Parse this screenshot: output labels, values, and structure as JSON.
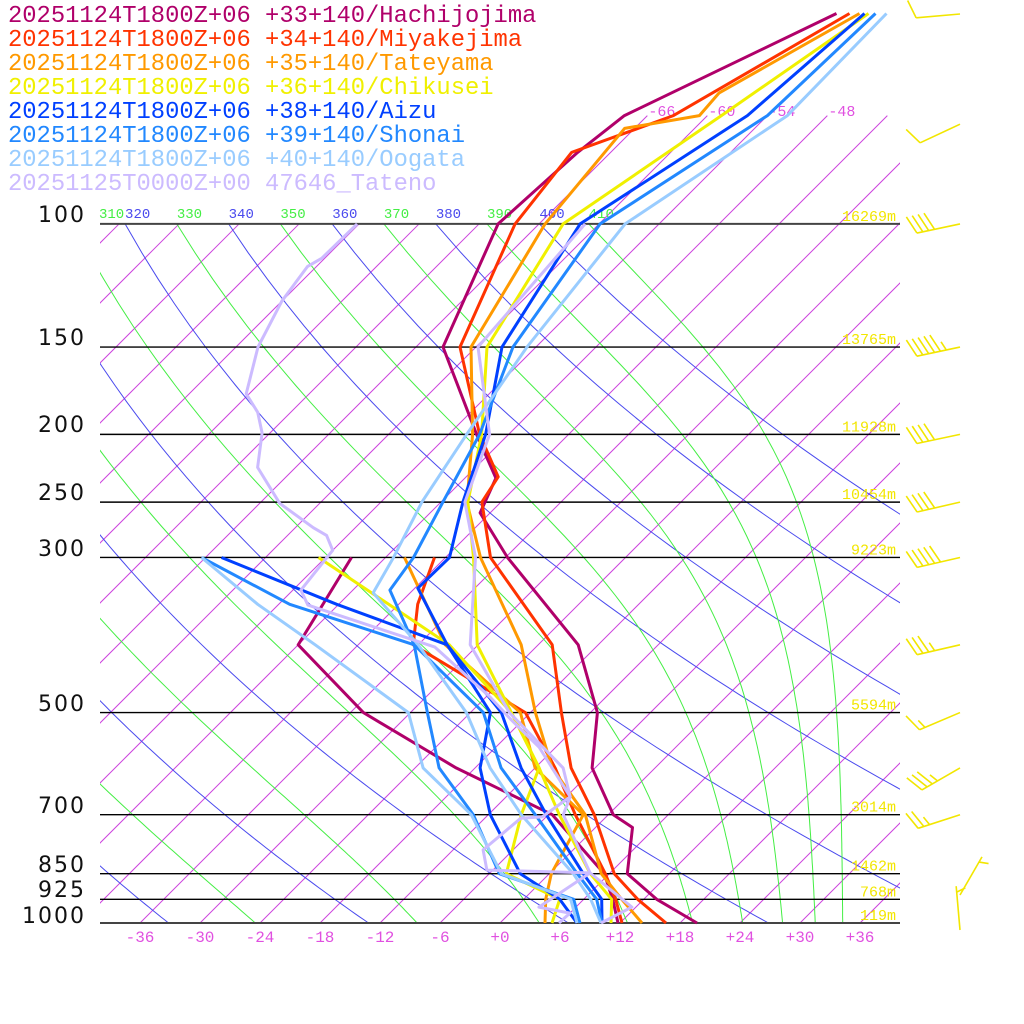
{
  "chart_data": {
    "type": "line",
    "chart_kind": "skew-T log-p",
    "xlabel": "",
    "ylabel": "",
    "xlim_at_1000hPa": [
      -40,
      40
    ],
    "ylim_hPa": [
      1000,
      48
    ],
    "colors": {
      "isotherm": "#cc44dd",
      "dry_adiabat": "#4a4aee",
      "moist_adiabat": "#44ee44",
      "isobar": "#000000",
      "height_label": "#f2e600",
      "temperature_label": "#e050e0",
      "wind_barb": "#f2e600"
    },
    "isobars": [
      {
        "p": 100,
        "label": "100",
        "height": "16269m"
      },
      {
        "p": 150,
        "label": "150",
        "height": "13765m"
      },
      {
        "p": 200,
        "label": "200",
        "height": "11928m"
      },
      {
        "p": 250,
        "label": "250",
        "height": "10454m"
      },
      {
        "p": 300,
        "label": "300",
        "height": "9223m"
      },
      {
        "p": 500,
        "label": "500",
        "height": "5594m"
      },
      {
        "p": 700,
        "label": "700",
        "height": "3014m"
      },
      {
        "p": 850,
        "label": "850",
        "height": "1462m"
      },
      {
        "p": 925,
        "label": "925",
        "height": "768m"
      },
      {
        "p": 1000,
        "label": "1000",
        "height": "119m"
      }
    ],
    "temperature_ticks": [
      {
        "value": -36,
        "label": "-36"
      },
      {
        "value": -30,
        "label": "-30"
      },
      {
        "value": -24,
        "label": "-24"
      },
      {
        "value": -18,
        "label": "-18"
      },
      {
        "value": -12,
        "label": "-12"
      },
      {
        "value": -6,
        "label": "-6"
      },
      {
        "value": 0,
        "label": "+0"
      },
      {
        "value": 6,
        "label": "+6"
      },
      {
        "value": 12,
        "label": "+12"
      },
      {
        "value": 18,
        "label": "+18"
      },
      {
        "value": 24,
        "label": "+24"
      },
      {
        "value": 30,
        "label": "+30"
      },
      {
        "value": 36,
        "label": "+36"
      }
    ],
    "isotherm_top_labels": [
      {
        "value": -66,
        "label": "-66"
      },
      {
        "value": -60,
        "label": "-60"
      },
      {
        "value": -54,
        "label": "-54"
      },
      {
        "value": -48,
        "label": "-48"
      }
    ],
    "theta_labels": [
      {
        "value": 310,
        "label": "310",
        "kind": "theta_e"
      },
      {
        "value": 320,
        "label": "320",
        "kind": "theta"
      },
      {
        "value": 330,
        "label": "330",
        "kind": "theta_e"
      },
      {
        "value": 340,
        "label": "340",
        "kind": "theta"
      },
      {
        "value": 350,
        "label": "350",
        "kind": "theta_e"
      },
      {
        "value": 360,
        "label": "360",
        "kind": "theta"
      },
      {
        "value": 370,
        "label": "370",
        "kind": "theta_e"
      },
      {
        "value": 380,
        "label": "380",
        "kind": "theta"
      },
      {
        "value": 390,
        "label": "390",
        "kind": "theta_e"
      },
      {
        "value": 400,
        "label": "400",
        "kind": "theta"
      },
      {
        "value": 410,
        "label": "410",
        "kind": "theta_e"
      }
    ],
    "series": [
      {
        "label": "20251124T1800Z+06 +33+140/Hachijojima",
        "color": "#b0006a",
        "temperature": [
          [
            1000,
            19.7
          ],
          [
            925,
            13.3
          ],
          [
            850,
            7.8
          ],
          [
            730,
            3.7
          ],
          [
            700,
            0.5
          ],
          [
            600,
            -6.3
          ],
          [
            500,
            -11.3
          ],
          [
            400,
            -20.0
          ],
          [
            300,
            -35.8
          ],
          [
            259,
            -43.0
          ],
          [
            231,
            -44.9
          ],
          [
            200,
            -51.2
          ],
          [
            150,
            -63.3
          ],
          [
            100,
            -70.1
          ],
          [
            79,
            -69.3
          ],
          [
            70,
            -68.3
          ],
          [
            50,
            -57.3
          ]
        ],
        "dewpoint": [
          [
            1000,
            11.8
          ],
          [
            925,
            8.9
          ],
          [
            850,
            5.5
          ],
          [
            700,
            -5.6
          ],
          [
            600,
            -19.9
          ],
          [
            500,
            -34.7
          ],
          [
            400,
            -48.0
          ],
          [
            300,
            -51.4
          ]
        ]
      },
      {
        "label": "20251124T1800Z+06 +34+140/Miyakejima",
        "color": "#ff3300",
        "temperature": [
          [
            1000,
            16.6
          ],
          [
            925,
            11.4
          ],
          [
            850,
            6.5
          ],
          [
            700,
            -1.4
          ],
          [
            600,
            -8.4
          ],
          [
            500,
            -14.9
          ],
          [
            400,
            -22.6
          ],
          [
            300,
            -37.5
          ],
          [
            250,
            -43.9
          ],
          [
            230,
            -44.8
          ],
          [
            200,
            -50.9
          ],
          [
            150,
            -61.6
          ],
          [
            100,
            -68.4
          ],
          [
            79,
            -69.9
          ],
          [
            70,
            -63.4
          ],
          [
            50,
            -56.0
          ]
        ],
        "dewpoint": [
          [
            1000,
            12.2
          ],
          [
            925,
            9.2
          ],
          [
            850,
            5.6
          ],
          [
            700,
            -3.3
          ],
          [
            600,
            -10.0
          ],
          [
            500,
            -18.5
          ],
          [
            400,
            -36.5
          ],
          [
            350,
            -40.1
          ],
          [
            300,
            -43.1
          ]
        ]
      },
      {
        "label": "20251124T1800Z+06 +35+140/Tateyama",
        "color": "#ff9900",
        "temperature": [
          [
            1000,
            14.2
          ],
          [
            925,
            9.8
          ],
          [
            850,
            5.2
          ],
          [
            700,
            -2.3
          ],
          [
            600,
            -10.3
          ],
          [
            500,
            -17.5
          ],
          [
            400,
            -25.7
          ],
          [
            300,
            -38.5
          ],
          [
            250,
            -45.4
          ],
          [
            200,
            -51.6
          ],
          [
            150,
            -60.5
          ],
          [
            100,
            -65.4
          ],
          [
            73,
            -67.0
          ],
          [
            70,
            -60.8
          ],
          [
            65,
            -61.1
          ],
          [
            50,
            -55.0
          ]
        ],
        "dewpoint": [
          [
            1000,
            4.5
          ],
          [
            925,
            2.2
          ],
          [
            850,
            0.2
          ],
          [
            700,
            -2.5
          ],
          [
            600,
            -12.0
          ],
          [
            500,
            -19.0
          ],
          [
            400,
            -33.3
          ],
          [
            300,
            -46.1
          ]
        ]
      },
      {
        "label": "20251124T1800Z+06 +36+140/Chikusei",
        "color": "#f0f000",
        "temperature": [
          [
            1000,
            11.1
          ],
          [
            925,
            8.8
          ],
          [
            850,
            4.1
          ],
          [
            700,
            -4.9
          ],
          [
            600,
            -11.6
          ],
          [
            500,
            -19.9
          ],
          [
            400,
            -30.1
          ],
          [
            300,
            -39.2
          ],
          [
            250,
            -45.3
          ],
          [
            200,
            -50.7
          ],
          [
            150,
            -58.9
          ],
          [
            100,
            -63.6
          ],
          [
            70,
            -58.6
          ],
          [
            50,
            -54.1
          ]
        ],
        "dewpoint": [
          [
            1000,
            5.2
          ],
          [
            925,
            3.6
          ],
          [
            850,
            -4.3
          ],
          [
            700,
            -8.7
          ],
          [
            600,
            -11.6
          ],
          [
            500,
            -19.9
          ],
          [
            400,
            -32.9
          ],
          [
            350,
            -43.0
          ],
          [
            300,
            -54.7
          ]
        ]
      },
      {
        "label": "20251124T1800Z+06 +38+140/Aizu",
        "color": "#0040ff",
        "temperature": [
          [
            1000,
            10.2
          ],
          [
            925,
            7.8
          ],
          [
            850,
            3.4
          ],
          [
            700,
            -6.2
          ],
          [
            600,
            -13.4
          ],
          [
            500,
            -20.9
          ],
          [
            400,
            -33.1
          ],
          [
            332,
            -41.7
          ],
          [
            300,
            -41.6
          ],
          [
            250,
            -45.8
          ],
          [
            200,
            -50.3
          ],
          [
            150,
            -57.4
          ],
          [
            100,
            -61.9
          ],
          [
            70,
            -56.0
          ],
          [
            50,
            -54.5
          ]
        ],
        "dewpoint": [
          [
            1000,
            7.7
          ],
          [
            925,
            3.6
          ],
          [
            850,
            -2.9
          ],
          [
            700,
            -11.8
          ],
          [
            600,
            -17.5
          ],
          [
            500,
            -22.0
          ],
          [
            400,
            -33.1
          ],
          [
            350,
            -48.2
          ],
          [
            300,
            -64.4
          ]
        ]
      },
      {
        "label": "20251124T1800Z+06 +39+140/Shonai",
        "color": "#2288ff",
        "temperature": [
          [
            1000,
            10.2
          ],
          [
            925,
            7.3
          ],
          [
            850,
            2.8
          ],
          [
            700,
            -7.3
          ],
          [
            600,
            -15.4
          ],
          [
            500,
            -22.7
          ],
          [
            400,
            -36.4
          ],
          [
            334,
            -44.3
          ],
          [
            300,
            -45.2
          ],
          [
            250,
            -47.8
          ],
          [
            200,
            -50.9
          ],
          [
            150,
            -56.3
          ],
          [
            100,
            -59.9
          ],
          [
            70,
            -54.0
          ],
          [
            50,
            -53.4
          ]
        ],
        "dewpoint": [
          [
            1000,
            8.0
          ],
          [
            925,
            5.0
          ],
          [
            850,
            -5.0
          ],
          [
            700,
            -13.5
          ],
          [
            600,
            -21.6
          ],
          [
            500,
            -28.3
          ],
          [
            400,
            -36.4
          ],
          [
            350,
            -52.9
          ],
          [
            300,
            -66.4
          ]
        ]
      },
      {
        "label": "20251124T1800Z+06 +40+140/Oogata",
        "color": "#99ccff",
        "temperature": [
          [
            1000,
            10.1
          ],
          [
            925,
            6.7
          ],
          [
            850,
            2.4
          ],
          [
            700,
            -8.7
          ],
          [
            600,
            -16.5
          ],
          [
            500,
            -24.4
          ],
          [
            400,
            -36.0
          ],
          [
            337,
            -45.7
          ],
          [
            300,
            -47.2
          ],
          [
            250,
            -49.9
          ],
          [
            200,
            -52.2
          ],
          [
            150,
            -54.9
          ],
          [
            100,
            -57.4
          ],
          [
            70,
            -52.0
          ],
          [
            50,
            -52.3
          ]
        ],
        "dewpoint": [
          [
            1000,
            7.7
          ],
          [
            925,
            4.7
          ],
          [
            850,
            -4.8
          ],
          [
            700,
            -13.7
          ],
          [
            600,
            -23.2
          ],
          [
            500,
            -30.2
          ],
          [
            400,
            -46.3
          ],
          [
            350,
            -56.1
          ],
          [
            300,
            -66.4
          ]
        ]
      },
      {
        "label": "20251125T0000Z+00 47646_Tateno",
        "color": "#ccbbff",
        "temperature": [
          [
            1000,
            10.1
          ],
          [
            949,
            11.6
          ],
          [
            848,
            4.0
          ],
          [
            700,
            -4.5
          ],
          [
            660,
            -5.6
          ],
          [
            600,
            -9.2
          ],
          [
            500,
            -20.1
          ],
          [
            400,
            -30.8
          ],
          [
            300,
            -39.0
          ],
          [
            250,
            -45.6
          ],
          [
            200,
            -49.9
          ],
          [
            150,
            -59.8
          ],
          [
            100,
            -61.4
          ]
        ],
        "dewpoint": [
          [
            1000,
            5.9
          ],
          [
            968,
            6.0
          ],
          [
            949,
            2.3
          ],
          [
            848,
            4.0
          ],
          [
            840,
            -6.6
          ],
          [
            786,
            -9.0
          ],
          [
            708,
            -8.4
          ],
          [
            705,
            -6.4
          ],
          [
            660,
            -5.6
          ],
          [
            560,
            -13.7
          ],
          [
            512,
            -19.2
          ],
          [
            475,
            -23.6
          ],
          [
            403,
            -34.1
          ],
          [
            351,
            -51.0
          ],
          [
            334,
            -53.2
          ],
          [
            293,
            -54.0
          ],
          [
            279,
            -56.1
          ],
          [
            272,
            -58.2
          ],
          [
            251,
            -64.0
          ],
          [
            223,
            -69.8
          ],
          [
            199,
            -72.8
          ],
          [
            186,
            -75.3
          ],
          [
            175,
            -78.3
          ],
          [
            150,
            -81.8
          ],
          [
            129,
            -84.0
          ],
          [
            115,
            -84.9
          ],
          [
            112,
            -84.3
          ],
          [
            100,
            -84.2
          ]
        ]
      }
    ],
    "winds": [
      {
        "p": 50,
        "dir": 265,
        "speed_kt": 10
      },
      {
        "p": 72,
        "dir": 245,
        "speed_kt": 10
      },
      {
        "p": 100,
        "dir": 258,
        "speed_kt": 40
      },
      {
        "p": 150,
        "dir": 258,
        "speed_kt": 55
      },
      {
        "p": 200,
        "dir": 258,
        "speed_kt": 40
      },
      {
        "p": 250,
        "dir": 257,
        "speed_kt": 40
      },
      {
        "p": 300,
        "dir": 257,
        "speed_kt": 50
      },
      {
        "p": 400,
        "dir": 257,
        "speed_kt": 35
      },
      {
        "p": 500,
        "dir": 247,
        "speed_kt": 15
      },
      {
        "p": 600,
        "dir": 240,
        "speed_kt": 35
      },
      {
        "p": 700,
        "dir": 252,
        "speed_kt": 25
      },
      {
        "p": 925,
        "dir": 30,
        "speed_kt": 5
      },
      {
        "p": 1000,
        "dir": 355,
        "speed_kt": 5
      }
    ]
  }
}
